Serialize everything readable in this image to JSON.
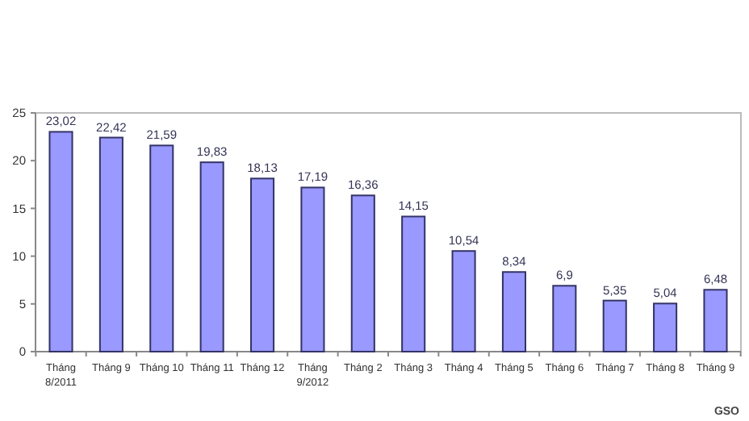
{
  "chart_data": {
    "type": "bar",
    "categories": [
      "Tháng 8/2011",
      "Tháng 9",
      "Tháng 10",
      "Tháng 11",
      "Tháng 12",
      "Tháng 9/2012",
      "Tháng 2",
      "Tháng 3",
      "Tháng 4",
      "Tháng 5",
      "Tháng 6",
      "Tháng 7",
      "Tháng 8",
      "Tháng 9"
    ],
    "values": [
      23.02,
      22.42,
      21.59,
      19.83,
      18.13,
      17.19,
      16.36,
      14.15,
      10.54,
      8.34,
      6.9,
      5.35,
      5.04,
      6.48
    ],
    "value_labels": [
      "23,02",
      "22,42",
      "21,59",
      "19,83",
      "18,13",
      "17,19",
      "16,36",
      "14,15",
      "10,54",
      "8,34",
      "6,9",
      "5,35",
      "5,04",
      "6,48"
    ],
    "color": "#9999ff",
    "ylim": [
      0,
      25
    ],
    "yticks": [
      0,
      5,
      10,
      15,
      20,
      25
    ],
    "annotations": [
      "GSO"
    ]
  }
}
